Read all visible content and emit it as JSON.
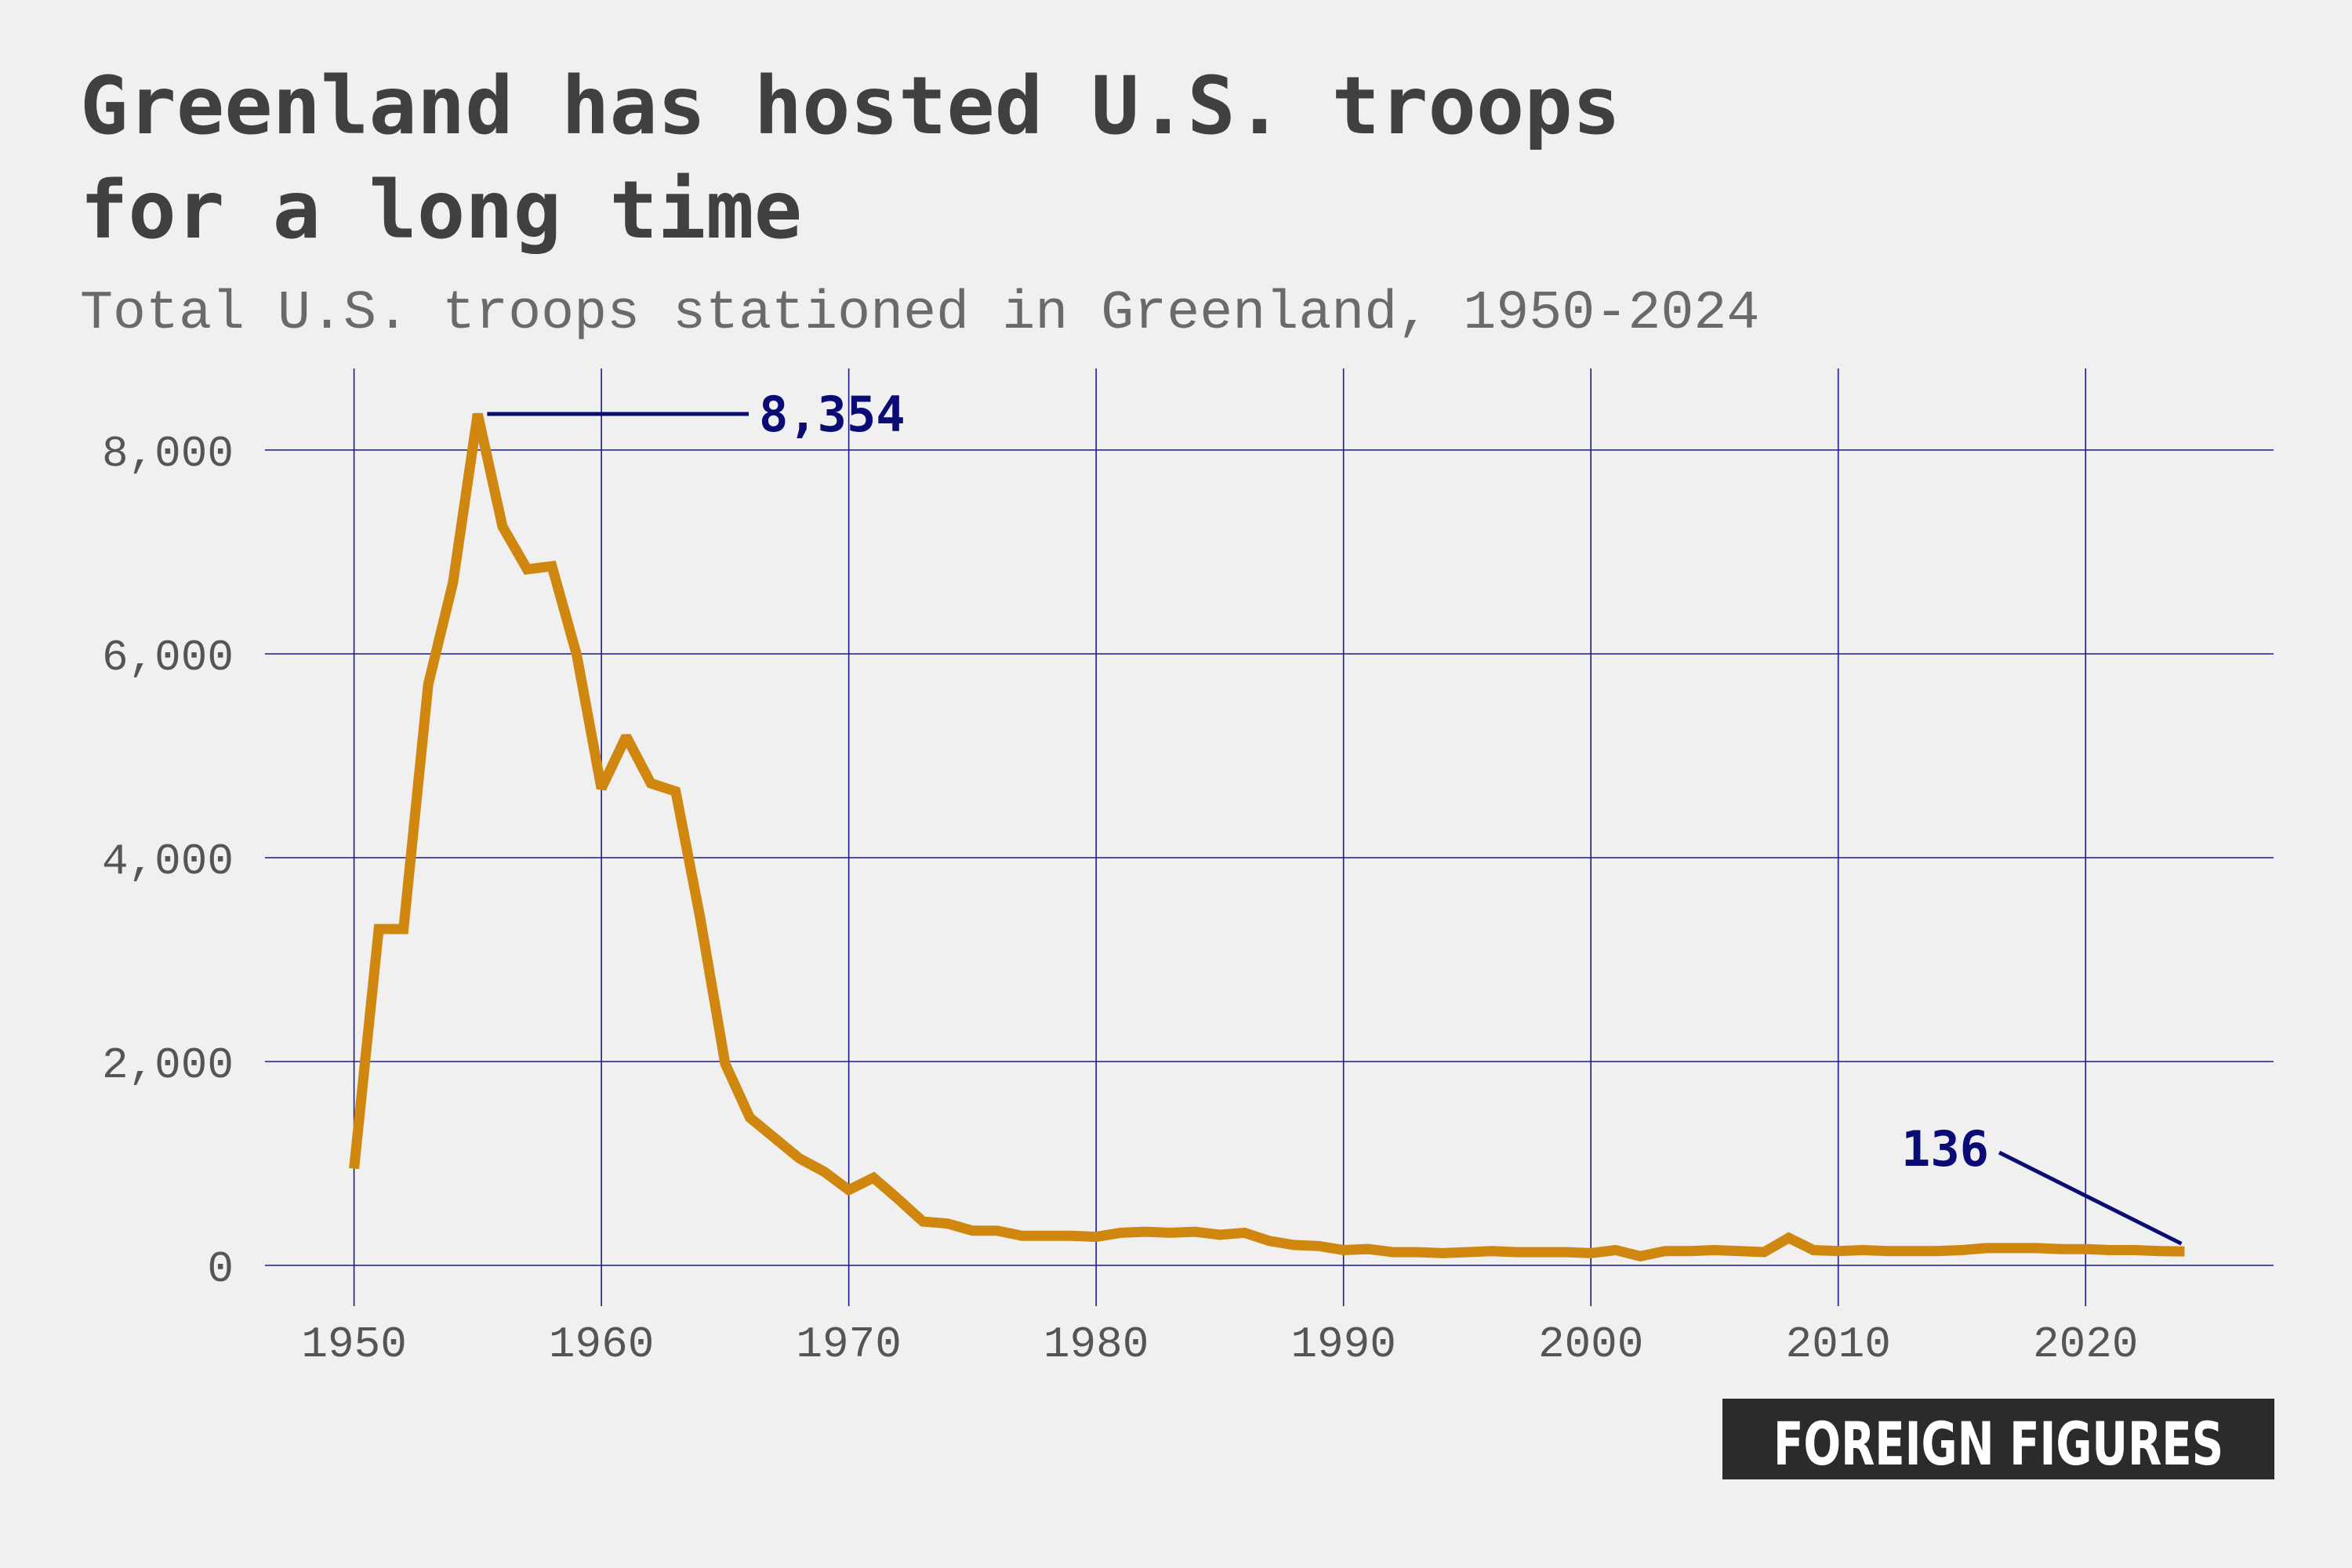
{
  "title_lines": [
    "Greenland has hosted U.S. troops",
    "for a long time"
  ],
  "subtitle": "Total U.S. troops stationed in Greenland, 1950-2024",
  "brand": "FOREIGN FIGURES",
  "colors": {
    "background": "#f0f0f0",
    "line": "#d0870f",
    "grid": "#1a1a8c",
    "annotation": "#0b0b75",
    "title": "#404040",
    "logo_bg": "#2b2b2b"
  },
  "chart_data": {
    "type": "line",
    "title": "Greenland has hosted U.S. troops for a long time",
    "subtitle": "Total U.S. troops stationed in Greenland, 1950-2024",
    "xlabel": "",
    "ylabel": "",
    "xlim": [
      1946.4,
      2027.6
    ],
    "ylim": [
      -400,
      8800
    ],
    "grid": true,
    "legend": "none",
    "x_ticks": [
      1950,
      1960,
      1970,
      1980,
      1990,
      2000,
      2010,
      2020
    ],
    "x_tick_labels": [
      "1950",
      "1960",
      "1970",
      "1980",
      "1990",
      "2000",
      "2010",
      "2020"
    ],
    "y_ticks": [
      0,
      2000,
      4000,
      6000,
      8000
    ],
    "y_tick_labels": [
      "0",
      "2,000",
      "4,000",
      "6,000",
      "8,000"
    ],
    "series": [
      {
        "x": [
          1950,
          1951,
          1952,
          1953,
          1954,
          1955,
          1956,
          1957,
          1958,
          1959,
          1960,
          1961,
          1962,
          1963,
          1964,
          1965,
          1966,
          1967,
          1968,
          1969,
          1970,
          1971,
          1972,
          1973,
          1974,
          1975,
          1976,
          1977,
          1978,
          1979,
          1980,
          1981,
          1982,
          1983,
          1984,
          1985,
          1986,
          1987,
          1988,
          1989,
          1990,
          1991,
          1992,
          1993,
          1994,
          1995,
          1996,
          1997,
          1998,
          1999,
          2000,
          2001,
          2002,
          2003,
          2004,
          2005,
          2006,
          2007,
          2008,
          2009,
          2010,
          2011,
          2012,
          2013,
          2014,
          2015,
          2016,
          2017,
          2018,
          2019,
          2020,
          2021,
          2022,
          2023,
          2024
        ],
        "values": [
          950,
          3300,
          3300,
          5700,
          6700,
          8354,
          7250,
          6830,
          6860,
          5990,
          4680,
          5190,
          4730,
          4650,
          3400,
          1980,
          1450,
          1250,
          1050,
          920,
          740,
          860,
          650,
          430,
          410,
          340,
          340,
          290,
          290,
          290,
          280,
          320,
          330,
          320,
          330,
          300,
          320,
          240,
          200,
          190,
          150,
          160,
          130,
          130,
          120,
          130,
          140,
          130,
          130,
          130,
          120,
          150,
          90,
          140,
          140,
          150,
          140,
          130,
          270,
          150,
          140,
          150,
          140,
          140,
          140,
          150,
          170,
          170,
          170,
          160,
          160,
          150,
          150,
          140,
          136
        ]
      }
    ],
    "annotations": [
      {
        "x": 1955,
        "value": 8354,
        "label": "8,354"
      },
      {
        "x": 2024,
        "value": 136,
        "label": "136"
      }
    ]
  }
}
